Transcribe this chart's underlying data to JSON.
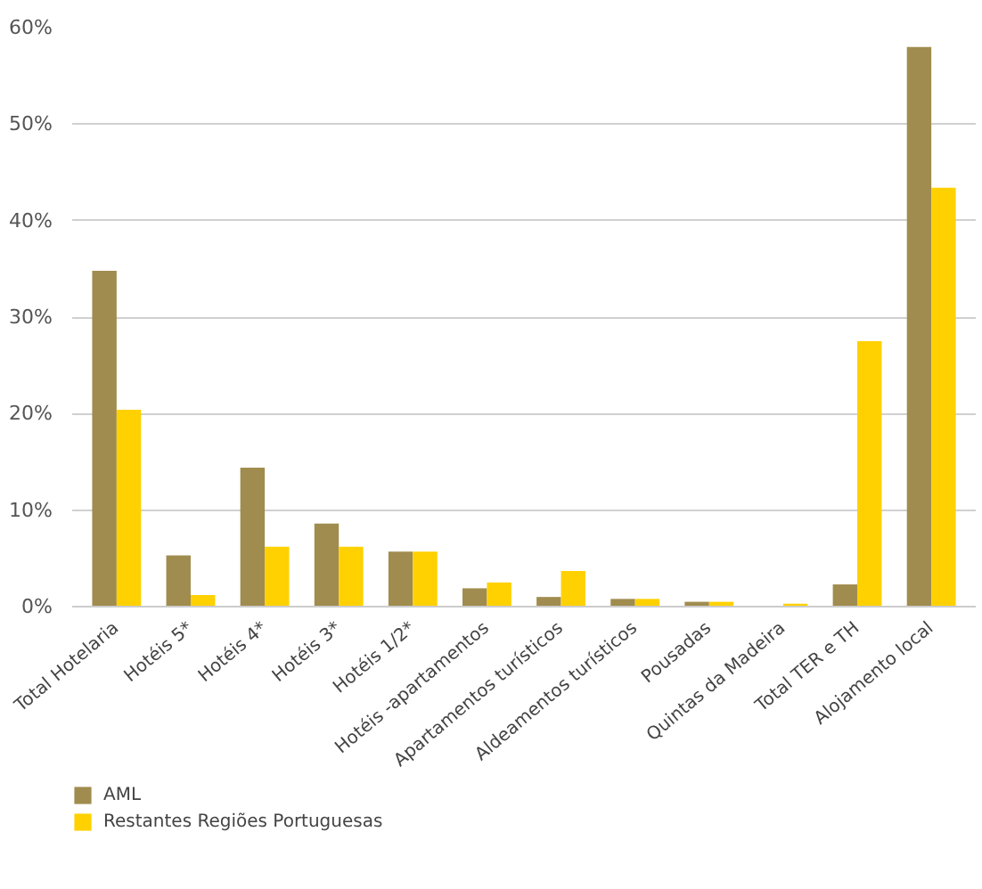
{
  "chart_data": {
    "type": "bar",
    "categories": [
      "Total Hotelaria",
      "Hotéis 5*",
      "Hotéis 4*",
      "Hotéis 3*",
      "Hotéis 1/2*",
      "Hotéis -apartamentos",
      "Apartamentos turísticos",
      "Aldeamentos turísticos",
      "Pousadas",
      "Quintas da Madeira",
      "Total TER e TH",
      "Alojamento local"
    ],
    "series": [
      {
        "name": "AML",
        "color": "#a08c4e",
        "values": [
          34.8,
          5.3,
          14.4,
          8.6,
          5.7,
          1.9,
          1.0,
          0.8,
          0.5,
          0,
          2.3,
          58.0
        ]
      },
      {
        "name": "Restantes Regiões Portuguesas",
        "color": "#ffd100",
        "values": [
          20.4,
          1.2,
          6.2,
          6.2,
          5.7,
          2.5,
          3.7,
          0.8,
          0.5,
          0.3,
          27.5,
          43.4
        ]
      }
    ],
    "ylim": [
      0,
      60
    ],
    "yticks": [
      {
        "value": 0,
        "label": "0%"
      },
      {
        "value": 10,
        "label": "10%"
      },
      {
        "value": 20,
        "label": "20%"
      },
      {
        "value": 30,
        "label": "30%"
      },
      {
        "value": 40,
        "label": "40%"
      },
      {
        "value": 50,
        "label": "50%"
      },
      {
        "value": 60,
        "label": "60%"
      }
    ],
    "grid": "y",
    "legend": "bottom left"
  }
}
